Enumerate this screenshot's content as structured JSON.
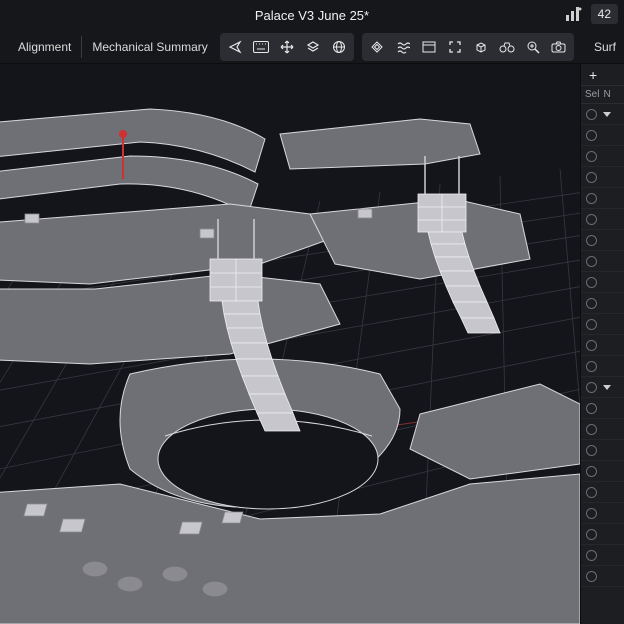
{
  "title": "Palace V3 June 25*",
  "topRight": {
    "counter": "42"
  },
  "tabs": {
    "alignment": "Alignment",
    "mechSummary": "Mechanical Summary"
  },
  "rightPanel": {
    "header": "Surf",
    "addLabel": "+",
    "colSel": "Sel",
    "colN": "N",
    "rows": [
      {
        "tri": "down"
      },
      {
        "tri": null
      },
      {
        "tri": null
      },
      {
        "tri": null
      },
      {
        "tri": null
      },
      {
        "tri": null
      },
      {
        "tri": null
      },
      {
        "tri": null
      },
      {
        "tri": null
      },
      {
        "tri": null
      },
      {
        "tri": null
      },
      {
        "tri": null
      },
      {
        "tri": null
      },
      {
        "tri": "down"
      },
      {
        "tri": null
      },
      {
        "tri": null
      },
      {
        "tri": null
      },
      {
        "tri": null
      },
      {
        "tri": null
      },
      {
        "tri": null
      },
      {
        "tri": null
      },
      {
        "tri": null
      },
      {
        "tri": null
      }
    ]
  },
  "viewport": {
    "bg": "#14151a",
    "gridColor": "#3a3c44",
    "surfaceFill": "#6f6f76",
    "surfaceStroke": "#d8d8dc",
    "speakerFill": "#c6c6cc",
    "speakerStroke": "#f0f0f2",
    "axisRed": "#c84040",
    "axisGreen": "#3f8f5f",
    "pinRed": "#d03030"
  },
  "icons": {
    "nav": "◁",
    "keyboard": "⌨",
    "move": "✥",
    "layers": "▤",
    "globe": "◍",
    "diamond": "◈",
    "waves": "≋",
    "bars": "▭",
    "expand": "⤢",
    "cube": "◳",
    "binoc": "⌕",
    "zoom": "⊕",
    "camera": "◉"
  }
}
